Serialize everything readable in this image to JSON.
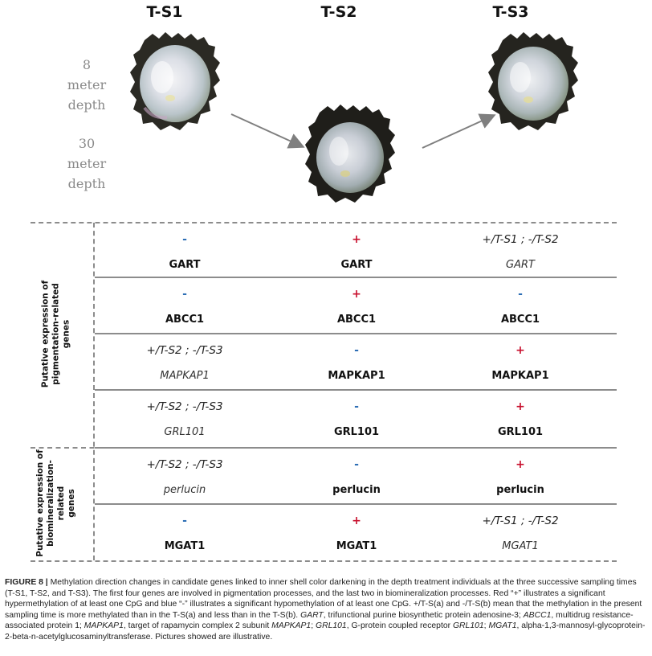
{
  "columns": [
    "T-S1",
    "T-S2",
    "T-S3"
  ],
  "depths": {
    "shallow": [
      "8",
      "meter",
      "depth"
    ],
    "deep": [
      "30",
      "meter",
      "depth"
    ]
  },
  "side_labels": {
    "pigmentation": [
      "Putative expression of",
      "pigmentation-related",
      "genes"
    ],
    "biomineralization": [
      "Putative expression of",
      "biomineralization-",
      "related",
      "genes"
    ]
  },
  "rows": [
    {
      "cells": [
        {
          "sym": "-",
          "sym_color": "blue",
          "gene": "GART",
          "style": "bold"
        },
        {
          "sym": "+",
          "sym_color": "red",
          "gene": "GART",
          "style": "bold"
        },
        {
          "sym": "+/T-S1 ; -/T-S2",
          "sym_color": "text",
          "gene": "GART",
          "style": "italic"
        }
      ]
    },
    {
      "cells": [
        {
          "sym": "-",
          "sym_color": "blue",
          "gene": "ABCC1",
          "style": "bold"
        },
        {
          "sym": "+",
          "sym_color": "red",
          "gene": "ABCC1",
          "style": "bold"
        },
        {
          "sym": "-",
          "sym_color": "blue",
          "gene": "ABCC1",
          "style": "bold"
        }
      ]
    },
    {
      "cells": [
        {
          "sym": "+/T-S2 ; -/T-S3",
          "sym_color": "text",
          "gene": "MAPKAP1",
          "style": "italic"
        },
        {
          "sym": "-",
          "sym_color": "blue",
          "gene": "MAPKAP1",
          "style": "bold"
        },
        {
          "sym": "+",
          "sym_color": "red",
          "gene": "MAPKAP1",
          "style": "bold"
        }
      ]
    },
    {
      "cells": [
        {
          "sym": "+/T-S2 ; -/T-S3",
          "sym_color": "text",
          "gene": "GRL101",
          "style": "italic"
        },
        {
          "sym": "-",
          "sym_color": "blue",
          "gene": "GRL101",
          "style": "bold"
        },
        {
          "sym": "+",
          "sym_color": "red",
          "gene": "GRL101",
          "style": "bold"
        }
      ]
    },
    {
      "cells": [
        {
          "sym": "+/T-S2 ; -/T-S3",
          "sym_color": "text",
          "gene": "perlucin",
          "style": "italic"
        },
        {
          "sym": "-",
          "sym_color": "blue",
          "gene": "perlucin",
          "style": "bold"
        },
        {
          "sym": "+",
          "sym_color": "red",
          "gene": "perlucin",
          "style": "bold"
        }
      ]
    },
    {
      "cells": [
        {
          "sym": "-",
          "sym_color": "blue",
          "gene": "MGAT1",
          "style": "bold"
        },
        {
          "sym": "+",
          "sym_color": "red",
          "gene": "MGAT1",
          "style": "bold"
        },
        {
          "sym": "+/T-S1 ; -/T-S2",
          "sym_color": "text",
          "gene": "MGAT1",
          "style": "italic"
        }
      ]
    }
  ],
  "colors": {
    "red": "#c8102e",
    "blue": "#2e6fb5",
    "rule": "#8c8c8c",
    "depth_text": "#8a8a8a"
  },
  "caption": {
    "label": "FIGURE 8 |",
    "parts": [
      {
        "t": " Methylation direction changes in candidate genes linked to inner shell color darkening in the depth treatment individuals at the three successive sampling times (T-S1, T-S2, and T-S3). The first four genes are involved in pigmentation processes, and the last two in biomineralization processes. Red “+” illustrates a significant hypermethylation of at least one CpG and blue “-” illustrates a significant hypomethylation of at least one CpG. +/T-S(a) and -/T-S(b) mean that the methylation in the present sampling time is more methylated than in the T-S(a) and less than in the T-S(b). ",
        "i": false
      },
      {
        "t": "GART",
        "i": true
      },
      {
        "t": ", trifunctional purine biosynthetic protein adenosine-3; ",
        "i": false
      },
      {
        "t": "ABCC1",
        "i": true
      },
      {
        "t": ", multidrug resistance-associated protein 1; ",
        "i": false
      },
      {
        "t": "MAPKAP1",
        "i": true
      },
      {
        "t": ", target of rapamycin complex 2 subunit ",
        "i": false
      },
      {
        "t": "MAPKAP1",
        "i": true
      },
      {
        "t": "; ",
        "i": false
      },
      {
        "t": "GRL101",
        "i": true
      },
      {
        "t": ", G-protein coupled receptor ",
        "i": false
      },
      {
        "t": "GRL101",
        "i": true
      },
      {
        "t": "; ",
        "i": false
      },
      {
        "t": "MGAT1",
        "i": true
      },
      {
        "t": ", alpha-1,3-mannosyl-glycoprotein-2-beta-n-acetylglucosaminyltransferase. Pictures showed are illustrative.",
        "i": false
      }
    ]
  }
}
